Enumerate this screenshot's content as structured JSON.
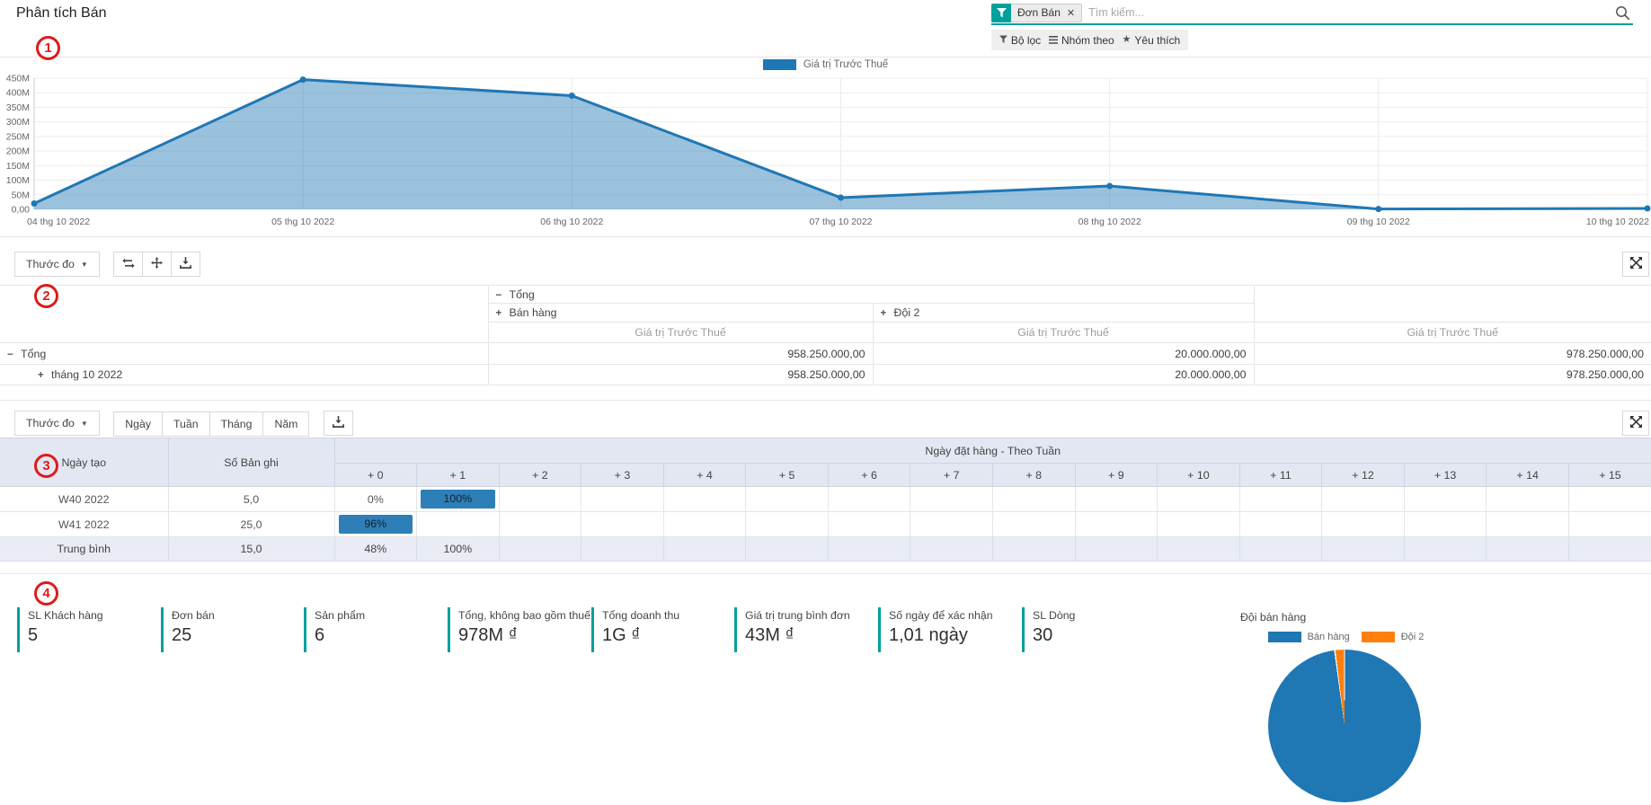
{
  "page": {
    "title": "Phân tích Bán"
  },
  "search": {
    "facet_label": "Đơn Bán",
    "placeholder": "Tìm kiếm...",
    "controls": [
      "Bộ lọc",
      "Nhóm theo",
      "Yêu thích"
    ]
  },
  "annotations": [
    "1",
    "2",
    "3",
    "4"
  ],
  "chart_data": {
    "type": "area",
    "x": [
      "04 thg 10 2022",
      "05 thg 10 2022",
      "06 thg 10 2022",
      "07 thg 10 2022",
      "08 thg 10 2022",
      "09 thg 10 2022",
      "10 thg 10 2022"
    ],
    "series": [
      {
        "name": "Giá trị Trước Thuế",
        "color": "#1f77b4",
        "fill_color": "rgba(31,119,180,0.45)",
        "values_millions": [
          20,
          445,
          390,
          40,
          80,
          1,
          3
        ]
      }
    ],
    "y_ticks": [
      "450M",
      "400M",
      "350M",
      "300M",
      "250M",
      "200M",
      "150M",
      "100M",
      "50M",
      "0,00"
    ],
    "ylim_millions": [
      0,
      450
    ],
    "grid": true,
    "legend_position": "top"
  },
  "pivot": {
    "measures_label": "Thước đo",
    "col_root": "Tổng",
    "col_groups": [
      "Bán hàng",
      "Đội 2"
    ],
    "measure_label": "Giá trị Trước Thuế",
    "rows": [
      {
        "label": "Tổng",
        "values": [
          "958.250.000,00",
          "20.000.000,00",
          "978.250.000,00"
        ]
      },
      {
        "label": "tháng 10 2022",
        "values": [
          "958.250.000,00",
          "20.000.000,00",
          "978.250.000,00"
        ]
      }
    ]
  },
  "cohort": {
    "measures_label": "Thước đo",
    "range_buttons": [
      "Ngày",
      "Tuần",
      "Tháng",
      "Năm"
    ],
    "row_header": "Ngày tạo",
    "count_header": "Số Bản ghi",
    "group_header": "Ngày đặt hàng - Theo Tuần",
    "offset_columns": [
      "+ 0",
      "+ 1",
      "+ 2",
      "+ 3",
      "+ 4",
      "+ 5",
      "+ 6",
      "+ 7",
      "+ 8",
      "+ 9",
      "+ 10",
      "+ 11",
      "+ 12",
      "+ 13",
      "+ 14",
      "+ 15"
    ],
    "rows": [
      {
        "label": "W40 2022",
        "count": "5,0",
        "avg": false,
        "cells": [
          {
            "col": 0,
            "text": "0%",
            "highlight": false
          },
          {
            "col": 1,
            "text": "100%",
            "highlight": true
          }
        ]
      },
      {
        "label": "W41 2022",
        "count": "25,0",
        "avg": false,
        "cells": [
          {
            "col": 0,
            "text": "96%",
            "highlight": true
          }
        ]
      },
      {
        "label": "Trung bình",
        "count": "15,0",
        "avg": true,
        "cells": [
          {
            "col": 0,
            "text": "48%",
            "highlight": false
          },
          {
            "col": 1,
            "text": "100%",
            "highlight": false
          }
        ]
      }
    ]
  },
  "dashboard": {
    "kpis": [
      {
        "label": "SL Khách hàng",
        "value": "5"
      },
      {
        "label": "Đơn bán",
        "value": "25"
      },
      {
        "label": "Sản phẩm",
        "value": "6"
      },
      {
        "label": "Tổng, không bao gồm thuế",
        "value": "978M ₫"
      },
      {
        "label": "Tổng doanh thu",
        "value": "1G ₫"
      },
      {
        "label": "Giá trị trung bình đơn",
        "value": "43M ₫"
      },
      {
        "label": "Số ngày để xác nhận",
        "value": "1,01 ngày"
      },
      {
        "label": "SL Dòng",
        "value": "30"
      }
    ],
    "pie": {
      "title": "Đội bán hàng",
      "slices": [
        {
          "label": "Bán hàng",
          "value_millions": 958.25,
          "color": "#1f77b4"
        },
        {
          "label": "Đội 2",
          "value_millions": 20,
          "color": "#ff7f0e"
        }
      ]
    }
  },
  "colors": {
    "accent": "#00a09d",
    "chart_blue": "#1f77b4",
    "chart_orange": "#ff7f0e",
    "cohort_highlight": "#2e7fb7",
    "annotation_red": "#df1b1b"
  },
  "icons": {
    "search": "magnifier",
    "facet": "funnel",
    "filters": "funnel",
    "group_by": "bars",
    "favorites": "star",
    "download": "download-tray",
    "swap_axes": "swap-arrows",
    "expand_all": "move-arrows",
    "fullscreen": "expand-arrows",
    "dropdown": "caret-down",
    "remove_facet": "x"
  }
}
